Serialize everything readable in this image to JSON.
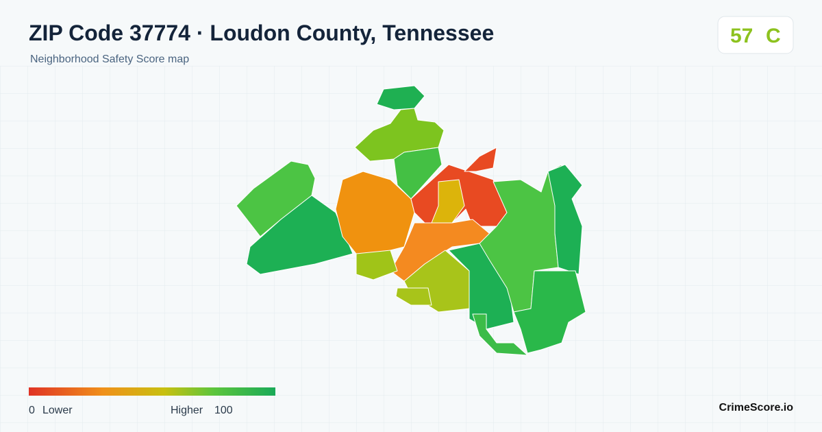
{
  "header": {
    "title": "ZIP Code 37774 · Loudon County, Tennessee",
    "subtitle": "Neighborhood Safety Score map"
  },
  "score": {
    "value": 57,
    "grade": "C"
  },
  "legend": {
    "min": 0,
    "min_label": "Lower",
    "max_label": "Higher",
    "max": 100
  },
  "brand": "CrimeScore.io"
}
